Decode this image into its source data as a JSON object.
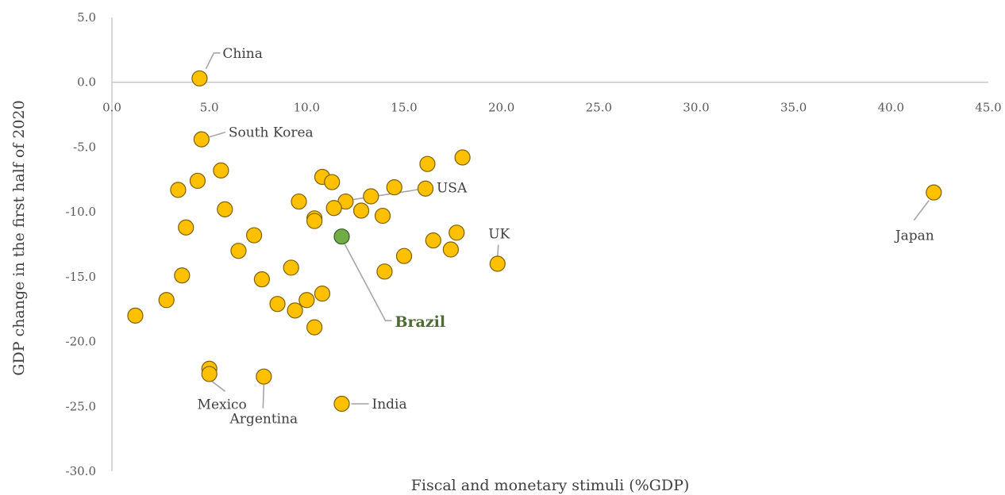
{
  "chart_data": {
    "type": "scatter",
    "title": "",
    "xlabel": "Fiscal and monetary stimuli (%GDP)",
    "ylabel": "GDP change in the first half of 2020",
    "xlim": [
      0,
      45
    ],
    "ylim": [
      -30,
      5
    ],
    "x_ticks": [
      "0.0",
      "5.0",
      "10.0",
      "15.0",
      "20.0",
      "25.0",
      "30.0",
      "35.0",
      "40.0",
      "45.0"
    ],
    "y_ticks": [
      "5.0",
      "0.0",
      "-5.0",
      "-10.0",
      "-15.0",
      "-20.0",
      "-25.0",
      "-30.0"
    ],
    "grid": false,
    "point_color": "#ffc000",
    "point_edge_color": "#7f6000",
    "highlight_color": "#70ad47",
    "highlight_edge_color": "#385723",
    "highlight_label_color": "#4e6b34",
    "points": [
      {
        "x": 4.5,
        "y": 0.3,
        "label": "China"
      },
      {
        "x": 4.6,
        "y": -4.4,
        "label": "South Korea"
      },
      {
        "x": 18.0,
        "y": -5.8
      },
      {
        "x": 16.2,
        "y": -6.3
      },
      {
        "x": 5.6,
        "y": -6.8
      },
      {
        "x": 10.8,
        "y": -7.3
      },
      {
        "x": 4.4,
        "y": -7.6
      },
      {
        "x": 11.3,
        "y": -7.7
      },
      {
        "x": 14.5,
        "y": -8.1
      },
      {
        "x": 3.4,
        "y": -8.3
      },
      {
        "x": 16.1,
        "y": -8.2,
        "label": "USA"
      },
      {
        "x": 42.2,
        "y": -8.5,
        "label": "Japan"
      },
      {
        "x": 13.3,
        "y": -8.8
      },
      {
        "x": 12.0,
        "y": -9.2
      },
      {
        "x": 9.6,
        "y": -9.2
      },
      {
        "x": 5.8,
        "y": -9.8
      },
      {
        "x": 11.4,
        "y": -9.7
      },
      {
        "x": 12.8,
        "y": -9.9
      },
      {
        "x": 13.9,
        "y": -10.3
      },
      {
        "x": 10.4,
        "y": -10.5
      },
      {
        "x": 10.4,
        "y": -10.7
      },
      {
        "x": 3.8,
        "y": -11.2
      },
      {
        "x": 17.7,
        "y": -11.6
      },
      {
        "x": 7.3,
        "y": -11.8
      },
      {
        "x": 11.8,
        "y": -11.9,
        "label": "Brazil",
        "highlight": true
      },
      {
        "x": 16.5,
        "y": -12.2
      },
      {
        "x": 17.4,
        "y": -12.9
      },
      {
        "x": 6.5,
        "y": -13.0
      },
      {
        "x": 15.0,
        "y": -13.4
      },
      {
        "x": 19.8,
        "y": -14.0,
        "label": "UK"
      },
      {
        "x": 9.2,
        "y": -14.3
      },
      {
        "x": 14.0,
        "y": -14.6
      },
      {
        "x": 3.6,
        "y": -14.9
      },
      {
        "x": 7.7,
        "y": -15.2
      },
      {
        "x": 10.8,
        "y": -16.3
      },
      {
        "x": 10.0,
        "y": -16.8
      },
      {
        "x": 2.8,
        "y": -16.8
      },
      {
        "x": 8.5,
        "y": -17.1
      },
      {
        "x": 9.4,
        "y": -17.6
      },
      {
        "x": 1.2,
        "y": -18.0
      },
      {
        "x": 10.4,
        "y": -18.9
      },
      {
        "x": 5.0,
        "y": -22.1
      },
      {
        "x": 5.0,
        "y": -22.5,
        "label": "Mexico"
      },
      {
        "x": 7.8,
        "y": -22.7,
        "label": "Argentina"
      },
      {
        "x": 11.8,
        "y": -24.8,
        "label": "India"
      }
    ]
  }
}
